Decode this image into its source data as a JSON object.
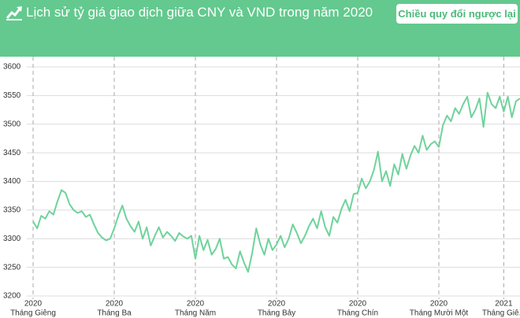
{
  "header": {
    "title": "Lịch sử tỷ giá giao dịch giữa CNY và VND trong năm 2020",
    "button": "Chiều quy đổi ngược lại"
  },
  "chart_data": {
    "type": "line",
    "color": "#6fd39b",
    "ylim": [
      3200,
      3600
    ],
    "yticks": [
      3200,
      3250,
      3300,
      3350,
      3400,
      3450,
      3500,
      3550,
      3600
    ],
    "grid": true,
    "categories": [
      {
        "year": "2020",
        "month": "Tháng Giêng"
      },
      null,
      null,
      null,
      null,
      null,
      null,
      null,
      null,
      null,
      null,
      null,
      null,
      null,
      null,
      null,
      null,
      null,
      null,
      null,
      {
        "year": "2020",
        "month": "Tháng Ba"
      },
      null,
      null,
      null,
      null,
      null,
      null,
      null,
      null,
      null,
      null,
      null,
      null,
      null,
      null,
      null,
      null,
      null,
      null,
      null,
      {
        "year": "2020",
        "month": "Tháng Năm"
      },
      null,
      null,
      null,
      null,
      null,
      null,
      null,
      null,
      null,
      null,
      null,
      null,
      null,
      null,
      null,
      null,
      null,
      null,
      null,
      {
        "year": "2020",
        "month": "Tháng Bảy"
      },
      null,
      null,
      null,
      null,
      null,
      null,
      null,
      null,
      null,
      null,
      null,
      null,
      null,
      null,
      null,
      null,
      null,
      null,
      null,
      {
        "year": "2020",
        "month": "Tháng Chín"
      },
      null,
      null,
      null,
      null,
      null,
      null,
      null,
      null,
      null,
      null,
      null,
      null,
      null,
      null,
      null,
      null,
      null,
      null,
      null,
      {
        "year": "2020",
        "month": "Tháng Mười Một"
      },
      null,
      null,
      null,
      null,
      null,
      null,
      null,
      null,
      null,
      null,
      null,
      null,
      null,
      null,
      null,
      {
        "year": "2021",
        "month": "Tháng Giê..."
      },
      null,
      null,
      null,
      null
    ],
    "values": [
      3330,
      3318,
      3340,
      3335,
      3348,
      3342,
      3365,
      3385,
      3380,
      3360,
      3350,
      3345,
      3348,
      3338,
      3342,
      3325,
      3310,
      3302,
      3297,
      3300,
      3318,
      3340,
      3358,
      3335,
      3322,
      3312,
      3330,
      3300,
      3320,
      3288,
      3305,
      3320,
      3302,
      3312,
      3305,
      3296,
      3310,
      3304,
      3300,
      3305,
      3265,
      3305,
      3280,
      3298,
      3272,
      3282,
      3300,
      3265,
      3268,
      3255,
      3248,
      3278,
      3258,
      3242,
      3275,
      3318,
      3290,
      3272,
      3300,
      3280,
      3290,
      3305,
      3285,
      3300,
      3325,
      3310,
      3292,
      3305,
      3322,
      3335,
      3318,
      3348,
      3320,
      3305,
      3338,
      3328,
      3352,
      3368,
      3348,
      3378,
      3380,
      3405,
      3388,
      3400,
      3420,
      3452,
      3400,
      3418,
      3392,
      3430,
      3412,
      3448,
      3422,
      3445,
      3462,
      3450,
      3480,
      3455,
      3465,
      3470,
      3460,
      3498,
      3515,
      3505,
      3528,
      3518,
      3535,
      3548,
      3512,
      3525,
      3545,
      3495,
      3555,
      3535,
      3528,
      3548,
      3522,
      3548,
      3512,
      3540,
      3545
    ]
  }
}
